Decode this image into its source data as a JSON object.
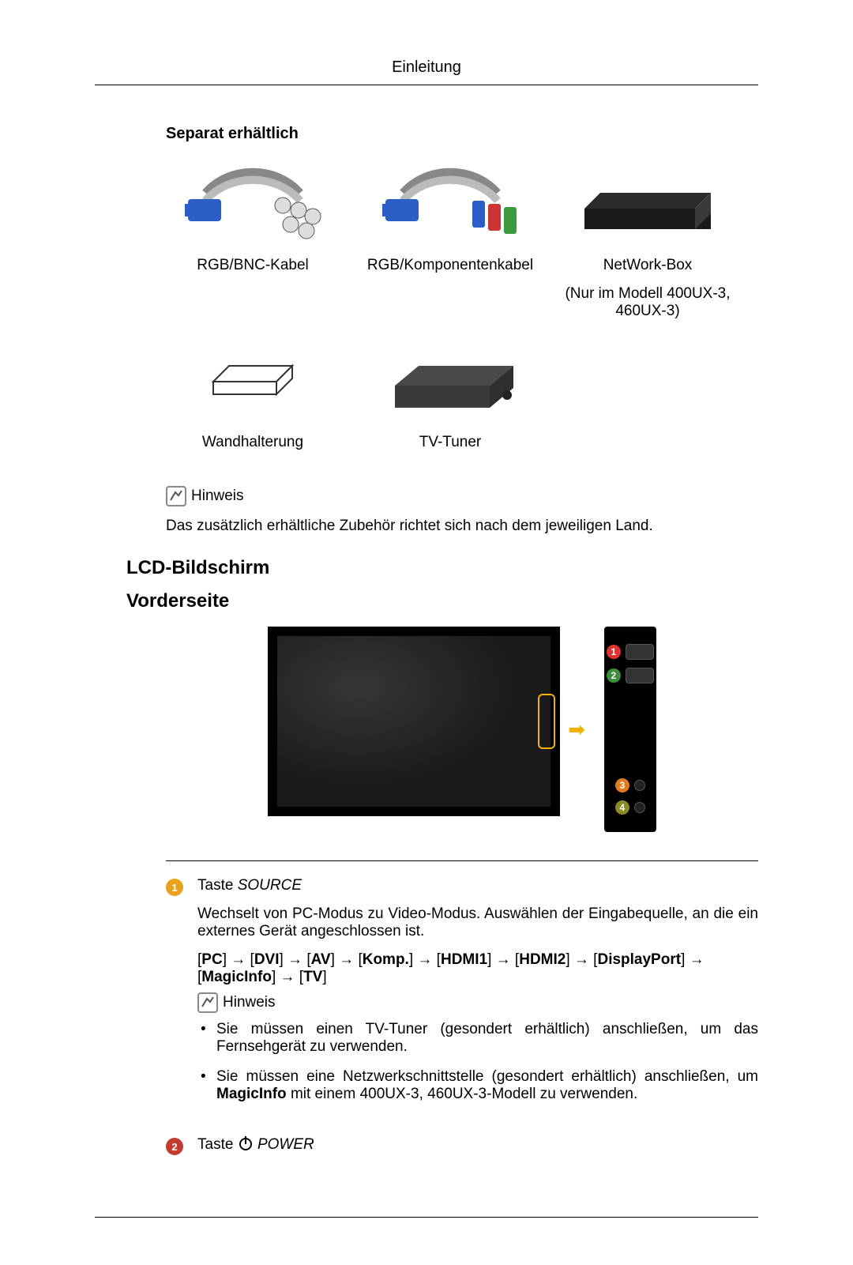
{
  "header": {
    "title": "Einleitung"
  },
  "accessories": {
    "section_label": "Separat erhältlich",
    "row1": [
      {
        "label": "RGB/BNC-Kabel",
        "note": ""
      },
      {
        "label": "RGB/Komponentenkabel",
        "note": ""
      },
      {
        "label": "NetWork-Box",
        "note": "(Nur im Modell 400UX-3, 460UX-3)"
      }
    ],
    "row2": [
      {
        "label": "Wandhalterung"
      },
      {
        "label": "TV-Tuner"
      }
    ]
  },
  "note": {
    "label": "Hinweis",
    "text": "Das zusätzlich erhältliche Zubehör richtet sich nach dem jeweiligen Land."
  },
  "lcd": {
    "h2": "LCD-Bildschirm",
    "h3": "Vorderseite",
    "markers": [
      "1",
      "2",
      "3",
      "4"
    ]
  },
  "desc": {
    "item1": {
      "num": "1",
      "title_prefix": "Taste ",
      "title_italic": "SOURCE",
      "para": "Wechselt von PC-Modus zu Video-Modus. Auswählen der Eingabequelle, an die ein externes Gerät angeschlossen ist.",
      "seq_parts": [
        "PC",
        "DVI",
        "AV",
        "Komp.",
        "HDMI1",
        "HDMI2",
        "DisplayPort",
        "MagicInfo",
        "TV"
      ],
      "note_label": "Hinweis",
      "bullets": [
        "Sie müssen einen TV-Tuner (gesondert erhältlich) anschließen, um das Fernsehgerät zu verwenden.",
        "Sie müssen eine Netzwerkschnittstelle (gesondert erhältlich) anschließen, um MagicInfo mit einem 400UX-3, 460UX-3-Modell zu verwenden."
      ],
      "bullet2_bold": "MagicInfo"
    },
    "item2": {
      "num": "2",
      "title_prefix": "Taste ",
      "title_italic": "POWER"
    }
  },
  "colors": {
    "marker1": "#d33333",
    "marker2": "#3b8f3b",
    "marker3": "#e07b1f",
    "marker4": "#8a8a2a",
    "num1": "#e8a21d",
    "num2": "#c43c2f",
    "callout": "#f2b200"
  }
}
